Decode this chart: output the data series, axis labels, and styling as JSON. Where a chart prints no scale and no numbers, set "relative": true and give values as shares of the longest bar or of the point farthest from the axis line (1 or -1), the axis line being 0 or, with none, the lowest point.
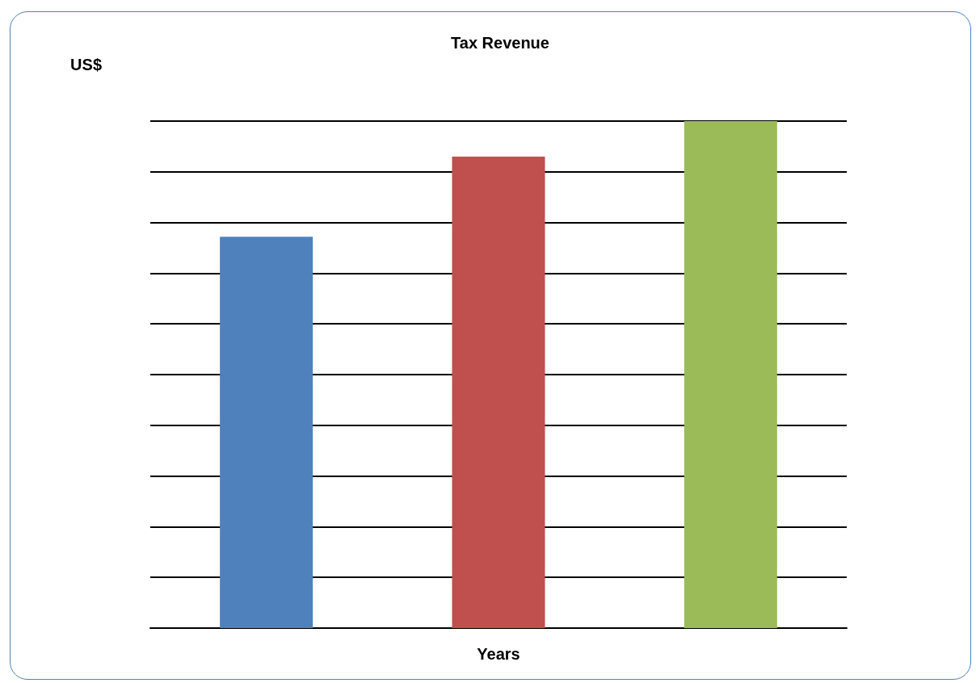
{
  "chart_data": {
    "type": "bar",
    "title": "Tax Revenue",
    "ylabel": "US$",
    "xlabel": "Years",
    "categories": [
      null,
      null,
      null
    ],
    "values": [
      0.772,
      0.93,
      1
    ],
    "colors": [
      "#4f81bd",
      "#c0504d",
      "#9bbb59"
    ],
    "relative": true,
    "grid": "y"
  }
}
